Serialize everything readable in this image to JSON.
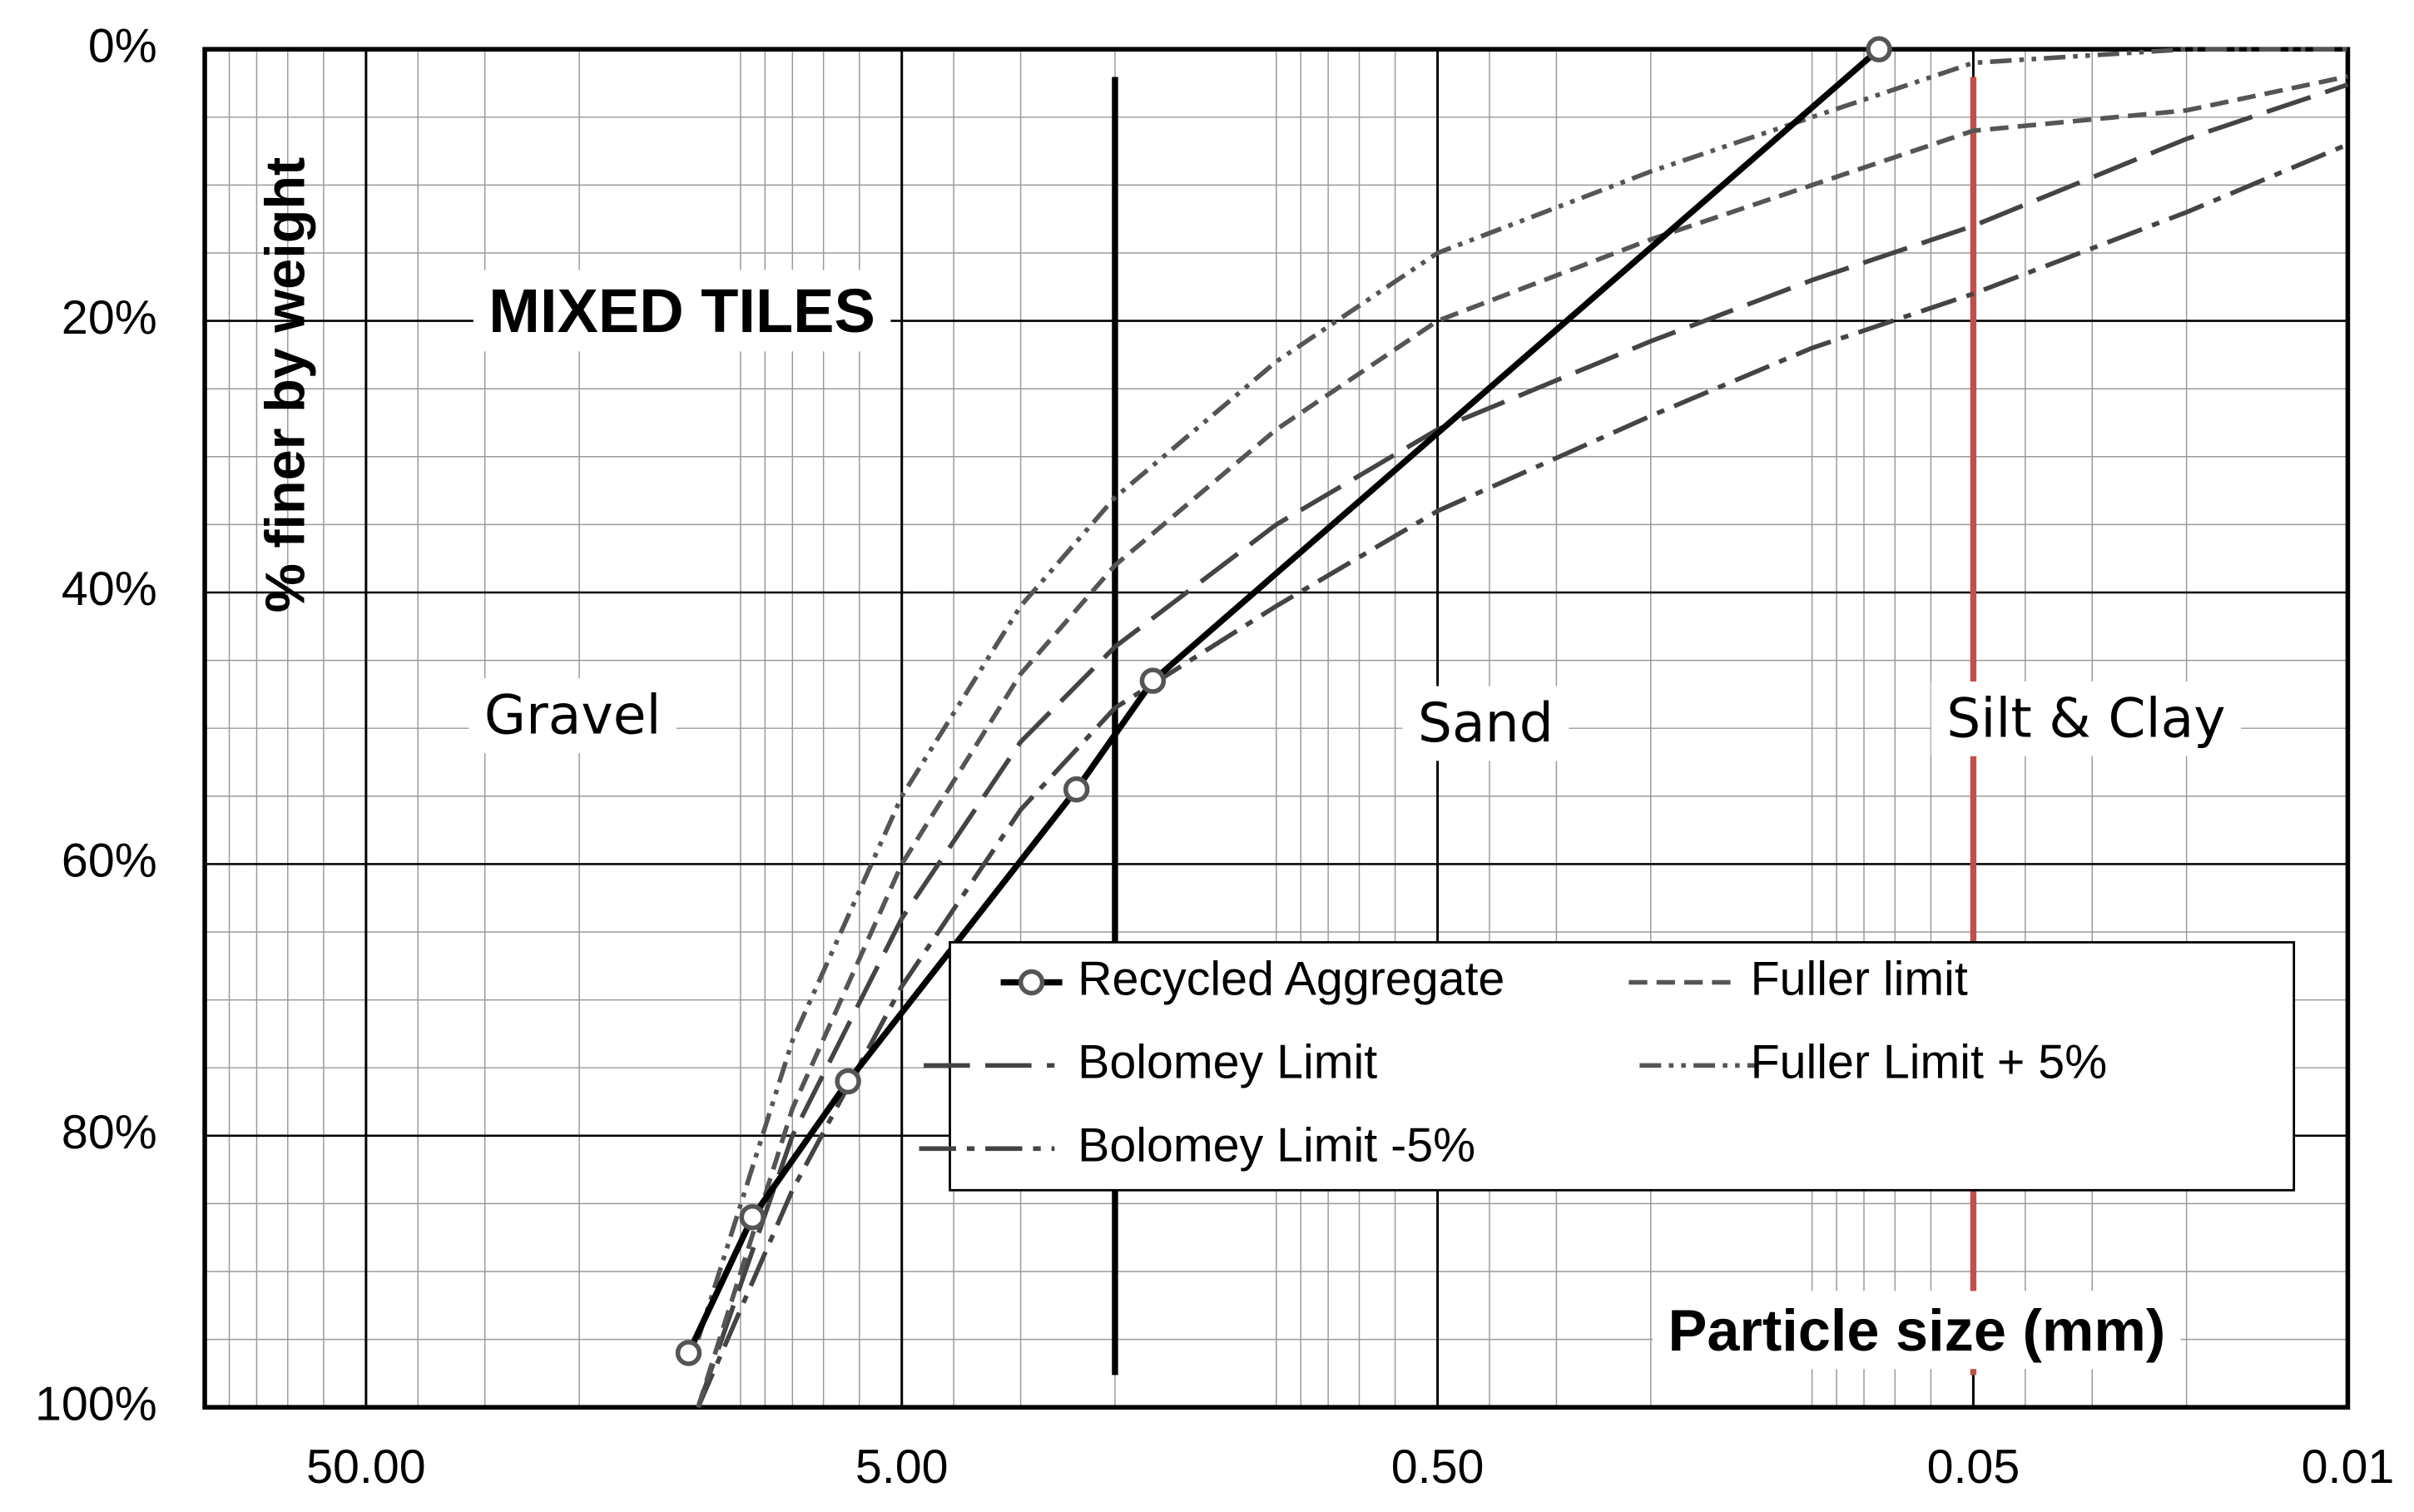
{
  "chart_data": {
    "type": "line",
    "title": "MIXED TILES",
    "y_label": "% finer by weight",
    "x_label": "Particle size (mm)",
    "xscale": "log",
    "xlim": [
      100,
      0.01
    ],
    "xticks": [
      {
        "value": 50,
        "label": "50.00"
      },
      {
        "value": 5,
        "label": "5.00"
      },
      {
        "value": 0.5,
        "label": "0.50"
      },
      {
        "value": 0.05,
        "label": "0.05"
      },
      {
        "value": 0.01,
        "label": "0.01"
      }
    ],
    "ylim": [
      0,
      100
    ],
    "y_reversed": true,
    "yticks": [
      {
        "value": 0,
        "label": "0%"
      },
      {
        "value": 20,
        "label": "20%"
      },
      {
        "value": 40,
        "label": "40%"
      },
      {
        "value": 60,
        "label": "60%"
      },
      {
        "value": 80,
        "label": "80%"
      },
      {
        "value": 100,
        "label": "100%"
      }
    ],
    "grid": true,
    "annotations": [
      "Gravel",
      "Sand",
      "Silt & Clay"
    ],
    "reference_lines": [
      {
        "x": 2,
        "color": "#000000"
      },
      {
        "x": 0.05,
        "color": "#c0504d"
      }
    ],
    "series": [
      {
        "name": "Recycled Aggregate",
        "color": "#000000",
        "dash": "solid",
        "marker": "circle",
        "x": [
          12.5,
          9.5,
          6.3,
          2.36,
          1.7,
          0.075
        ],
        "values": [
          96,
          86,
          76,
          54.5,
          46.5,
          0
        ]
      },
      {
        "name": "Fuller limit",
        "color": "#555555",
        "dash": "short",
        "x": [
          12,
          8,
          5,
          3,
          2,
          1,
          0.5,
          0.2,
          0.1,
          0.05,
          0.02,
          0.01
        ],
        "values": [
          100,
          78,
          60,
          46,
          38,
          28,
          20,
          14,
          10,
          6,
          4.5,
          2
        ]
      },
      {
        "name": "Bolomey Limit",
        "color": "#444444",
        "dash": "long",
        "x": [
          12,
          8,
          5,
          3,
          2,
          1,
          0.5,
          0.2,
          0.1,
          0.05,
          0.02,
          0.01
        ],
        "values": [
          100,
          80,
          64,
          51,
          44,
          35,
          28,
          21.5,
          17,
          13,
          6.6,
          2.6
        ]
      },
      {
        "name": "Fuller Limit + 5%",
        "color": "#555555",
        "dash": "dashdotdot",
        "x": [
          12,
          8,
          5,
          3,
          2,
          1,
          0.5,
          0.2,
          0.1,
          0.05,
          0.02,
          0.01
        ],
        "values": [
          95,
          73,
          55,
          41,
          33,
          23,
          15,
          9,
          5,
          1,
          0,
          0
        ]
      },
      {
        "name": "Bolomey Limit -5%",
        "color": "#444444",
        "dash": "dashdot",
        "x": [
          12,
          8,
          5,
          3,
          2,
          1,
          0.5,
          0.2,
          0.1,
          0.05,
          0.02,
          0.01
        ],
        "values": [
          100,
          84,
          69,
          56,
          48.5,
          41,
          34,
          27,
          22,
          18,
          12,
          7
        ]
      }
    ]
  }
}
